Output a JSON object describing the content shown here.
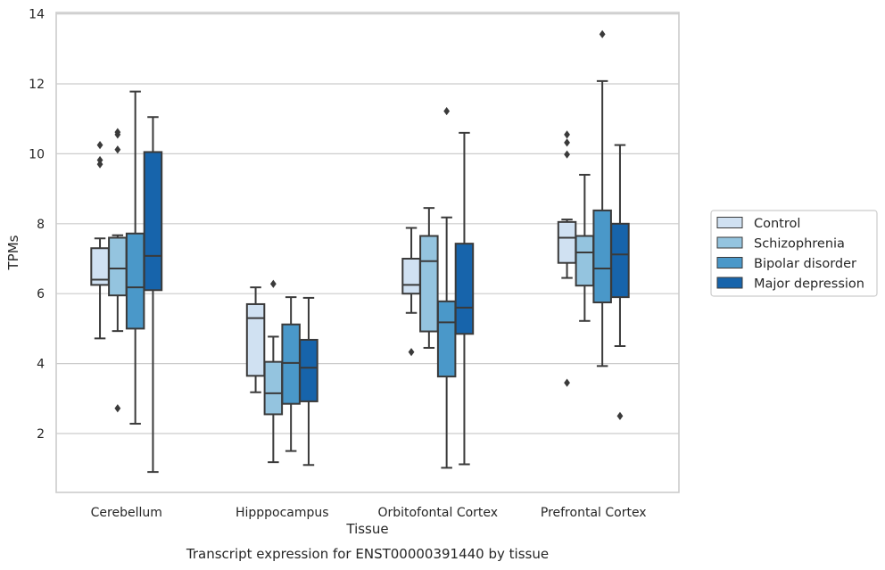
{
  "chart_data": {
    "type": "box",
    "caption": "Transcript expression for ENST00000391440 by tissue",
    "xlabel": "Tissue",
    "ylabel": "TPMs",
    "ylim": [
      0.25,
      14.1
    ],
    "yticks": [
      2,
      4,
      6,
      8,
      10,
      12,
      14
    ],
    "grid": "horizontal",
    "legend_position": "right",
    "categories": [
      "Cerebellum",
      "Hipppocampus",
      "Orbitofontal Cortex",
      "Prefrontal Cortex"
    ],
    "series": [
      {
        "name": "Control",
        "color": "#d0e1f2",
        "boxes": [
          {
            "whislo": 4.72,
            "q1": 6.25,
            "med": 6.4,
            "q3": 7.3,
            "whishi": 7.58,
            "fliers": [
              9.7,
              9.82,
              10.25
            ]
          },
          {
            "whislo": 3.18,
            "q1": 3.65,
            "med": 5.3,
            "q3": 5.7,
            "whishi": 6.18,
            "fliers": []
          },
          {
            "whislo": 5.45,
            "q1": 6.0,
            "med": 6.25,
            "q3": 7.0,
            "whishi": 7.88,
            "fliers": [
              4.33
            ]
          },
          {
            "whislo": 6.45,
            "q1": 6.88,
            "med": 7.6,
            "q3": 8.05,
            "whishi": 8.12,
            "fliers": [
              3.45,
              9.98,
              10.32,
              10.55
            ]
          }
        ]
      },
      {
        "name": "Schizophrenia",
        "color": "#94c4df",
        "boxes": [
          {
            "whislo": 4.93,
            "q1": 5.95,
            "med": 6.72,
            "q3": 7.6,
            "whishi": 7.67,
            "fliers": [
              2.72,
              10.12,
              10.55,
              10.62
            ]
          },
          {
            "whislo": 1.18,
            "q1": 2.55,
            "med": 3.15,
            "q3": 4.05,
            "whishi": 4.77,
            "fliers": [
              6.28
            ]
          },
          {
            "whislo": 4.45,
            "q1": 4.92,
            "med": 6.93,
            "q3": 7.65,
            "whishi": 8.45,
            "fliers": []
          },
          {
            "whislo": 5.22,
            "q1": 6.23,
            "med": 7.18,
            "q3": 7.65,
            "whishi": 9.4,
            "fliers": []
          }
        ]
      },
      {
        "name": "Bipolar disorder",
        "color": "#4a98c9",
        "boxes": [
          {
            "whislo": 2.28,
            "q1": 5.0,
            "med": 6.18,
            "q3": 7.72,
            "whishi": 11.78,
            "fliers": []
          },
          {
            "whislo": 1.5,
            "q1": 2.85,
            "med": 4.02,
            "q3": 5.12,
            "whishi": 5.9,
            "fliers": []
          },
          {
            "whislo": 1.02,
            "q1": 3.63,
            "med": 5.18,
            "q3": 5.78,
            "whishi": 8.18,
            "fliers": [
              11.22
            ]
          },
          {
            "whislo": 3.93,
            "q1": 5.75,
            "med": 6.72,
            "q3": 8.38,
            "whishi": 12.08,
            "fliers": [
              13.42
            ]
          }
        ]
      },
      {
        "name": "Major depression",
        "color": "#1764ab",
        "boxes": [
          {
            "whislo": 0.9,
            "q1": 6.1,
            "med": 7.08,
            "q3": 10.05,
            "whishi": 11.05,
            "fliers": []
          },
          {
            "whislo": 1.1,
            "q1": 2.92,
            "med": 3.88,
            "q3": 4.68,
            "whishi": 5.88,
            "fliers": []
          },
          {
            "whislo": 1.12,
            "q1": 4.85,
            "med": 5.6,
            "q3": 7.43,
            "whishi": 10.6,
            "fliers": []
          },
          {
            "whislo": 4.5,
            "q1": 5.9,
            "med": 7.12,
            "q3": 8.0,
            "whishi": 10.25,
            "fliers": [
              2.5
            ]
          }
        ]
      }
    ]
  }
}
